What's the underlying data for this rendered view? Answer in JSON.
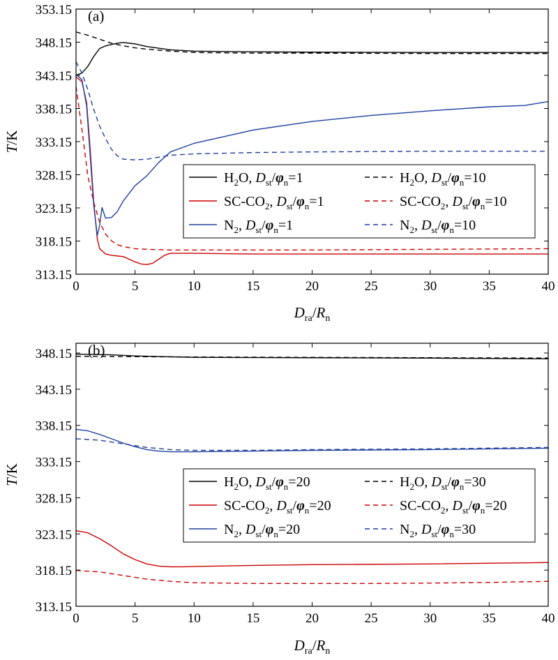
{
  "chart_data": [
    {
      "type": "line",
      "panel_label": "(a)",
      "xlabel": {
        "main": "D",
        "main_sub": "ra",
        "sep": "/",
        "den": "R",
        "den_sub": "n"
      },
      "ylabel": {
        "var": "T",
        "unit": "/K"
      },
      "xlim": [
        0,
        40
      ],
      "ylim": [
        313.15,
        353.15
      ],
      "xticks": [
        "0",
        "5",
        "10",
        "15",
        "20",
        "25",
        "30",
        "35",
        "40"
      ],
      "yticks": [
        "313.15",
        "318.15",
        "323.15",
        "328.15",
        "333.15",
        "338.15",
        "343.15",
        "348.15",
        "353.15"
      ],
      "legend_placement": "center-right",
      "series": [
        {
          "fluid": "H",
          "fluid_sub": "2",
          "fluid_tail": "O",
          "ratio": "1",
          "color": "#000000",
          "dash": "solid",
          "x": [
            0,
            0.5,
            1,
            1.5,
            2,
            2.5,
            3,
            3.5,
            4,
            5,
            6,
            8,
            10,
            15,
            20,
            30,
            40
          ],
          "y": [
            343.15,
            343.5,
            344.5,
            346.0,
            347.2,
            347.6,
            347.8,
            348.0,
            348.1,
            347.9,
            347.5,
            347.0,
            346.8,
            346.7,
            346.65,
            346.6,
            346.6
          ]
        },
        {
          "fluid": "H",
          "fluid_sub": "2",
          "fluid_tail": "O",
          "ratio": "10",
          "color": "#000000",
          "dash": "dashed",
          "x": [
            0,
            1,
            2,
            3,
            4,
            5,
            6,
            8,
            10,
            15,
            20,
            30,
            40
          ],
          "y": [
            349.7,
            349.2,
            348.6,
            348.0,
            347.6,
            347.3,
            347.1,
            346.8,
            346.6,
            346.5,
            346.5,
            346.45,
            346.45
          ]
        },
        {
          "fluid": "SC-CO",
          "fluid_sub": "2",
          "fluid_tail": "",
          "ratio": "1",
          "color": "#cc0000",
          "dash": "solid",
          "x": [
            0,
            0.5,
            0.9,
            1.2,
            1.5,
            1.8,
            2.0,
            2.5,
            3.0,
            3.5,
            4.0,
            5.0,
            5.5,
            6.0,
            6.5,
            7.0,
            7.5,
            8.0,
            9.0,
            10,
            15,
            20,
            30,
            40
          ],
          "y": [
            342.9,
            342.2,
            339.0,
            332.0,
            324.0,
            318.5,
            317.0,
            316.2,
            316.0,
            315.9,
            315.8,
            315.0,
            314.7,
            314.6,
            314.8,
            315.4,
            316.0,
            316.3,
            316.3,
            316.3,
            316.2,
            316.2,
            316.2,
            316.2
          ]
        },
        {
          "fluid": "SC-CO",
          "fluid_sub": "2",
          "fluid_tail": "",
          "ratio": "10",
          "color": "#cc0000",
          "dash": "dashed",
          "x": [
            0,
            0.5,
            1.0,
            1.5,
            2.0,
            2.5,
            3.0,
            3.5,
            4.0,
            5.0,
            6.0,
            8.0,
            10,
            15,
            20,
            30,
            40
          ],
          "y": [
            341.5,
            335.0,
            328.0,
            324.0,
            321.0,
            319.2,
            318.2,
            317.6,
            317.3,
            317.0,
            316.9,
            316.8,
            316.8,
            316.8,
            316.8,
            316.9,
            317.0
          ]
        },
        {
          "fluid": "N",
          "fluid_sub": "2",
          "fluid_tail": "",
          "ratio": "1",
          "color": "#1f3f9e",
          "dash": "solid",
          "x": [
            0,
            0.5,
            0.9,
            1.2,
            1.5,
            1.8,
            2.0,
            2.2,
            2.5,
            3.0,
            3.5,
            4.0,
            5.0,
            6.0,
            7.0,
            8.0,
            10,
            15,
            20,
            25,
            30,
            35,
            38,
            40
          ],
          "y": [
            343.3,
            342.5,
            338.5,
            331.0,
            323.5,
            319.0,
            320.5,
            323.2,
            321.6,
            321.7,
            322.6,
            324.2,
            326.5,
            328.0,
            330.0,
            331.6,
            332.9,
            334.9,
            336.2,
            337.1,
            337.8,
            338.4,
            338.6,
            339.2
          ]
        },
        {
          "fluid": "N",
          "fluid_sub": "2",
          "fluid_tail": "",
          "ratio": "10",
          "color": "#1f3f9e",
          "dash": "dashed",
          "x": [
            0,
            0.5,
            1.0,
            1.5,
            2.0,
            2.5,
            3.0,
            3.5,
            4.0,
            5.0,
            6.0,
            7.0,
            8.0,
            10,
            15,
            20,
            30,
            40
          ],
          "y": [
            345.2,
            343.5,
            341.0,
            338.0,
            335.5,
            333.6,
            332.0,
            331.0,
            330.5,
            330.4,
            330.5,
            330.8,
            331.1,
            331.3,
            331.5,
            331.6,
            331.7,
            331.7
          ]
        }
      ]
    },
    {
      "type": "line",
      "panel_label": "(b)",
      "xlabel": {
        "main": "D",
        "main_sub": "ra",
        "sep": "/",
        "den": "R",
        "den_sub": "n"
      },
      "ylabel": {
        "var": "T",
        "unit": "/K"
      },
      "xlim": [
        0,
        40
      ],
      "ylim": [
        313.15,
        349.5
      ],
      "xticks": [
        "0",
        "5",
        "10",
        "15",
        "20",
        "25",
        "30",
        "35",
        "40"
      ],
      "yticks": [
        "313.15",
        "318.15",
        "323.15",
        "328.15",
        "333.15",
        "338.15",
        "343.15",
        "348.15"
      ],
      "legend_placement": "center-right",
      "series": [
        {
          "fluid": "H",
          "fluid_sub": "2",
          "fluid_tail": "O",
          "ratio": "20",
          "color": "#000000",
          "dash": "solid",
          "x": [
            0,
            3,
            5,
            10,
            20,
            30,
            40
          ],
          "y": [
            348.0,
            347.9,
            347.75,
            347.55,
            347.5,
            347.45,
            347.35
          ]
        },
        {
          "fluid": "H",
          "fluid_sub": "2",
          "fluid_tail": "O",
          "ratio": "30",
          "color": "#000000",
          "dash": "dashed",
          "x": [
            0,
            5,
            10,
            20,
            30,
            40
          ],
          "y": [
            347.7,
            347.65,
            347.6,
            347.55,
            347.5,
            347.45
          ]
        },
        {
          "fluid": "SC-CO",
          "fluid_sub": "2",
          "fluid_tail": "",
          "ratio": "20",
          "color": "#cc0000",
          "dash": "solid",
          "x": [
            0,
            1,
            2,
            3,
            4,
            5,
            6,
            7,
            8,
            9,
            10,
            15,
            20,
            30,
            40
          ],
          "y": [
            323.6,
            323.3,
            322.5,
            321.5,
            320.4,
            319.6,
            319.0,
            318.7,
            318.6,
            318.6,
            318.65,
            318.8,
            318.9,
            319.0,
            319.2
          ]
        },
        {
          "fluid": "SC-CO",
          "fluid_sub": "2",
          "fluid_tail": "",
          "ratio": "20",
          "color": "#cc0000",
          "dash": "dashed",
          "x": [
            0,
            2,
            4,
            6,
            8,
            10,
            15,
            20,
            25,
            30,
            35,
            40
          ],
          "y": [
            318.1,
            317.9,
            317.4,
            316.9,
            316.6,
            316.4,
            316.3,
            316.3,
            316.3,
            316.35,
            316.45,
            316.6
          ]
        },
        {
          "fluid": "N",
          "fluid_sub": "2",
          "fluid_tail": "",
          "ratio": "20",
          "color": "#1f3f9e",
          "dash": "solid",
          "x": [
            0,
            1,
            2,
            3,
            4,
            5,
            6,
            7,
            8,
            10,
            15,
            20,
            30,
            40
          ],
          "y": [
            337.6,
            337.4,
            336.9,
            336.3,
            335.7,
            335.2,
            334.8,
            334.6,
            334.5,
            334.5,
            334.6,
            334.7,
            334.8,
            335.0
          ]
        },
        {
          "fluid": "N",
          "fluid_sub": "2",
          "fluid_tail": "",
          "ratio": "30",
          "color": "#1f3f9e",
          "dash": "dashed",
          "x": [
            0,
            2,
            4,
            6,
            8,
            10,
            15,
            20,
            30,
            40
          ],
          "y": [
            336.3,
            336.1,
            335.6,
            335.1,
            334.8,
            334.7,
            334.7,
            334.8,
            334.9,
            335.1
          ]
        }
      ]
    }
  ]
}
